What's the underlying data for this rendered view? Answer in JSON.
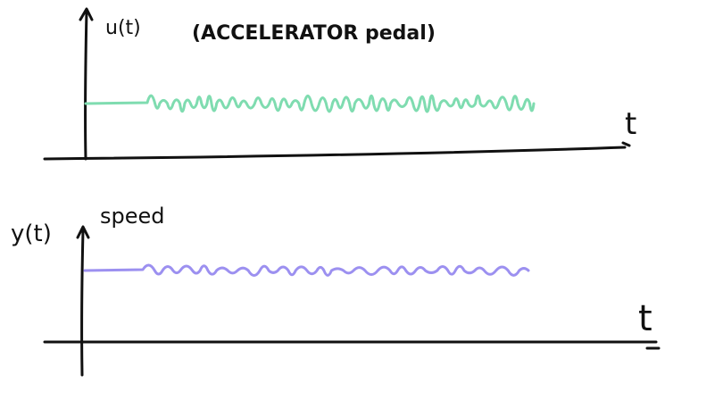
{
  "top": {
    "label": "u(t)",
    "description": "(ACCELERATOR pedal)",
    "axis": "t"
  },
  "bottom": {
    "label": "y(t)",
    "description": "speed",
    "axis": "t"
  }
}
